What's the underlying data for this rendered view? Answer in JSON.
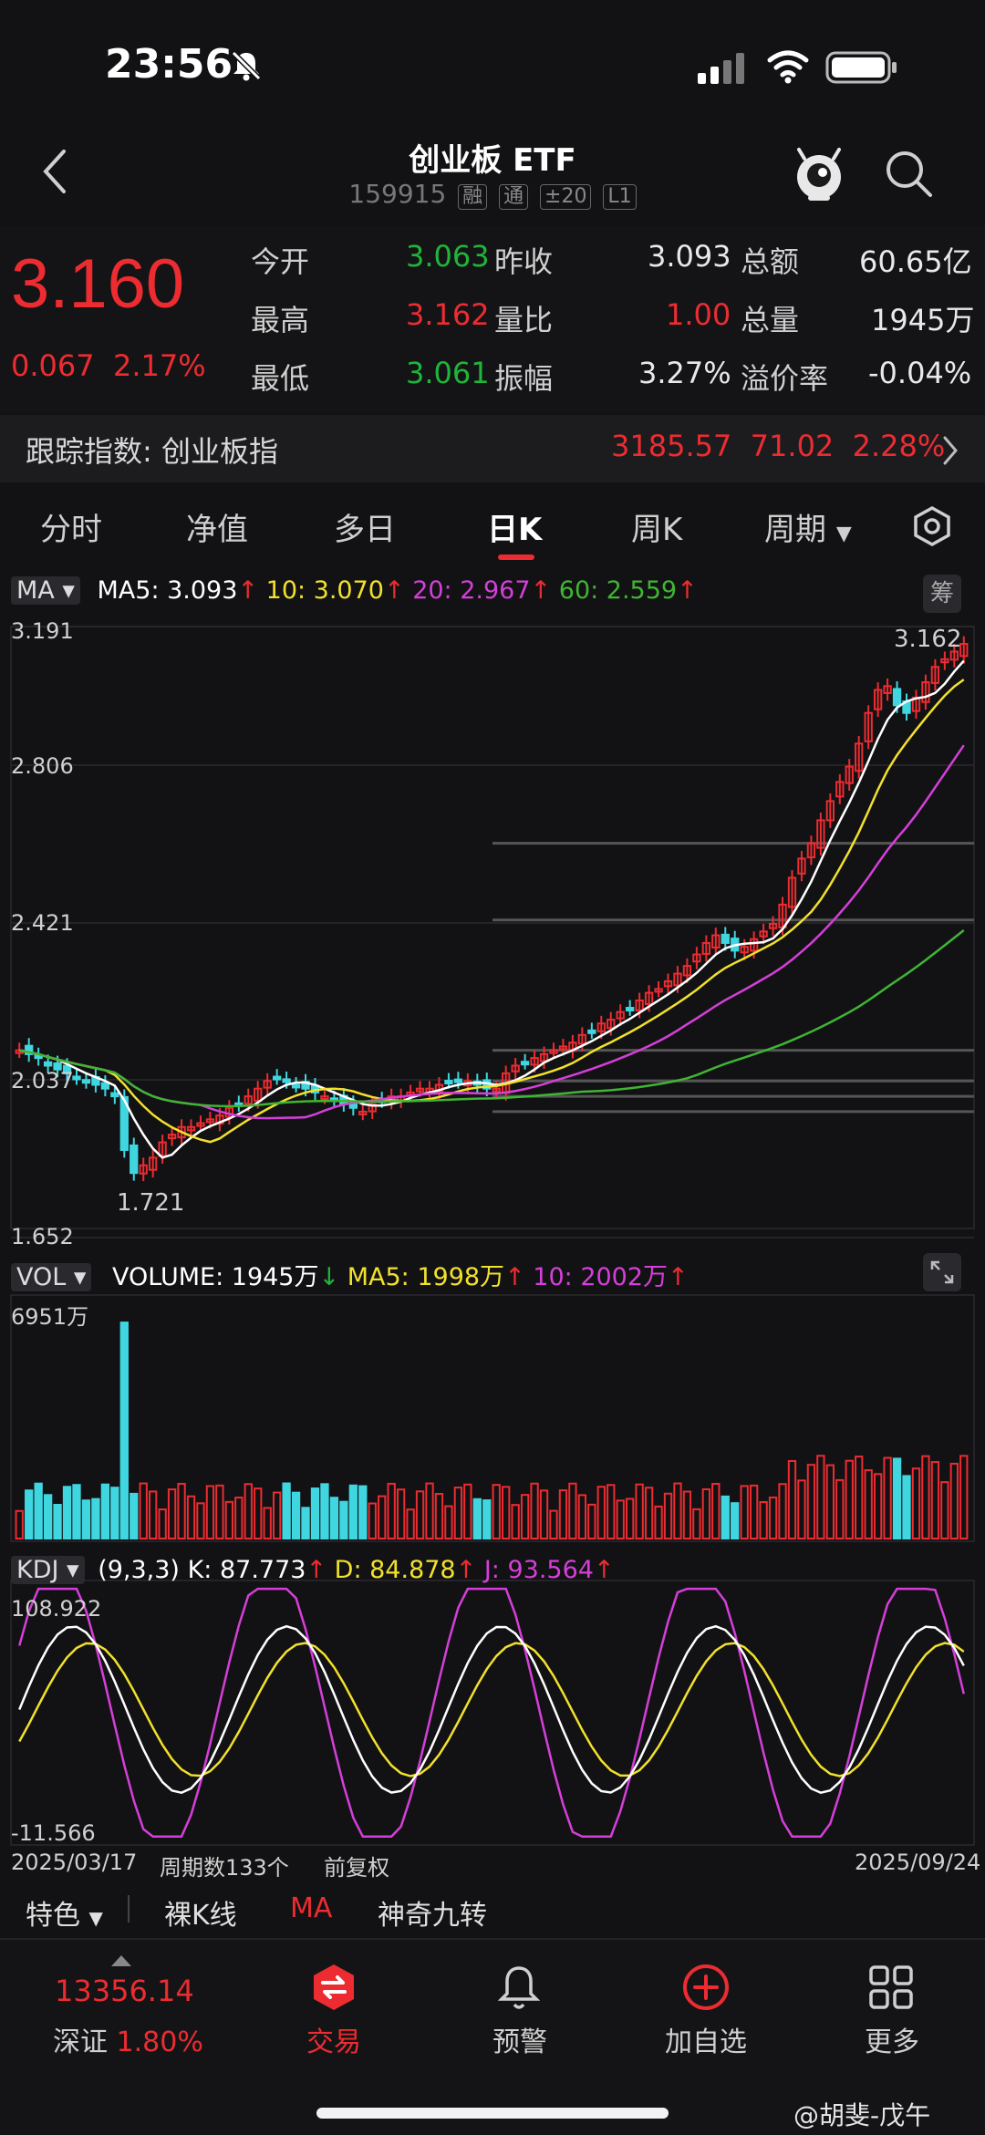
{
  "status": {
    "time": "23:56"
  },
  "header": {
    "title": "创业板 ETF",
    "code": "159915",
    "tags": [
      "融",
      "通",
      "±20",
      "L1"
    ]
  },
  "quote": {
    "price": "3.160",
    "change_abs": "0.067",
    "change_pct": "2.17%",
    "rows": [
      {
        "l1": "今开",
        "v1": "3.063",
        "l2": "昨收",
        "v2": "3.093",
        "l3": "总额",
        "v3": "60.65亿"
      },
      {
        "l1": "最高",
        "v1": "3.162",
        "l2": "量比",
        "v2": "1.00",
        "l3": "总量",
        "v3": "1945万"
      },
      {
        "l1": "最低",
        "v1": "3.061",
        "l2": "振幅",
        "v2": "3.27%",
        "l3": "溢价率",
        "v3": "-0.04%"
      }
    ],
    "colors": {
      "up": "#ec2c31",
      "down": "#1fb53a"
    }
  },
  "tracking": {
    "label": "跟踪指数: 创业板指",
    "value": "3185.57",
    "change": "71.02",
    "pct": "2.28%"
  },
  "tabs": [
    "分时",
    "净值",
    "多日",
    "日K",
    "周K",
    "周期"
  ],
  "active_tab": "日K",
  "chart": {
    "ma_selector": "MA",
    "ma5": "MA5: 3.093",
    "ma10": "10: 3.070",
    "ma20": "20: 2.967",
    "ma60": "60: 2.559",
    "chip_label": "筹",
    "ma_colors": {
      "ma5": "#ffffff",
      "ma10": "#f2e12c",
      "ma20": "#d53fd9",
      "ma60": "#3fb533"
    },
    "y_ticks": [
      "3.191",
      "2.806",
      "2.421",
      "2.037",
      "1.652"
    ],
    "max_label": "3.162",
    "min_label": "1.721",
    "vol_selector": "VOL",
    "volume_text": "VOLUME: 1945万",
    "vol_ma5": "MA5: 1998万",
    "vol_ma10": "10: 2002万",
    "vol_max": "6951万",
    "kdj_selector": "KDJ",
    "kdj_params": "(9,3,3)",
    "kdj_k": "K: 87.773",
    "kdj_d": "D: 84.878",
    "kdj_j": "J: 93.564",
    "kdj_top": "108.922",
    "kdj_bottom": "-11.566",
    "date_start": "2025/03/17",
    "period_count": "周期数133个",
    "adjust": "前复权",
    "date_end": "2025/09/24"
  },
  "chart_data": {
    "type": "candlestick",
    "bars": 133,
    "price_range": [
      1.652,
      3.191
    ],
    "first": "2025/03/17",
    "last": "2025/09/24",
    "close_approx": [
      2.1,
      2.09,
      2.08,
      2.06,
      2.05,
      2.04,
      2.03,
      2.02,
      2.01,
      2.0,
      1.98,
      1.84,
      1.78,
      1.8,
      1.82,
      1.86,
      1.88,
      1.9,
      1.9,
      1.91,
      1.92,
      1.93,
      1.95,
      1.96,
      1.98,
      2.0,
      2.02,
      2.03,
      2.02,
      2.01,
      2.0,
      1.99,
      1.98,
      1.97,
      1.96,
      1.95,
      1.94,
      1.96,
      1.97,
      1.98,
      1.98,
      1.99,
      2.0,
      2.0,
      2.01,
      2.02,
      2.02,
      2.02,
      2.01,
      2.0,
      2.0,
      2.04,
      2.06,
      2.07,
      2.08,
      2.09,
      2.1,
      2.11,
      2.12,
      2.14,
      2.15,
      2.17,
      2.18,
      2.2,
      2.21,
      2.23,
      2.25,
      2.26,
      2.28,
      2.3,
      2.32,
      2.35,
      2.38,
      2.4,
      2.38,
      2.36,
      2.37,
      2.39,
      2.41,
      2.43,
      2.48,
      2.55,
      2.6,
      2.64,
      2.7,
      2.75,
      2.8,
      2.84,
      2.9,
      2.98,
      3.04,
      3.05,
      3.0,
      2.98,
      3.02,
      3.06,
      3.1,
      3.12,
      3.14,
      3.16
    ]
  },
  "indicators": [
    "特色",
    "裸K线",
    "MA",
    "神奇九转"
  ],
  "bottom_nav": {
    "index_value": "13356.14",
    "index_name": "深证",
    "index_pct": "1.80%",
    "items": [
      "交易",
      "预警",
      "加自选",
      "更多"
    ]
  },
  "watermark": "@胡斐-戊午"
}
